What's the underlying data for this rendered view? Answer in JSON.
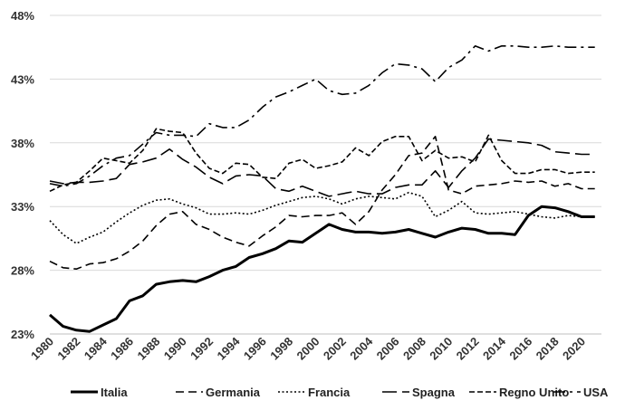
{
  "chart_data": {
    "type": "line",
    "title": "",
    "xlabel": "",
    "ylabel": "",
    "ylim": [
      23,
      48
    ],
    "yticks": [
      23,
      28,
      33,
      38,
      43,
      48
    ],
    "ytick_labels": [
      "23%",
      "28%",
      "33%",
      "38%",
      "43%",
      "48%"
    ],
    "xticks": [
      1980,
      1982,
      1984,
      1986,
      1988,
      1990,
      1992,
      1994,
      1996,
      1998,
      2000,
      2002,
      2004,
      2006,
      2008,
      2010,
      2012,
      2014,
      2016,
      2018,
      2020
    ],
    "xtick_labels": [
      "1980",
      "1982",
      "1984",
      "1986",
      "1988",
      "1990",
      "1992",
      "1994",
      "1996",
      "1998",
      "2000",
      "2002",
      "2004",
      "2006",
      "2008",
      "2010",
      "2012",
      "2014",
      "2016",
      "2018",
      "2020"
    ],
    "grid": "horizontal",
    "legend_position": "bottom",
    "x": [
      1980,
      1981,
      1982,
      1983,
      1984,
      1985,
      1986,
      1987,
      1988,
      1989,
      1990,
      1991,
      1992,
      1993,
      1994,
      1995,
      1996,
      1997,
      1998,
      1999,
      2000,
      2001,
      2002,
      2003,
      2004,
      2005,
      2006,
      2007,
      2008,
      2009,
      2010,
      2011,
      2012,
      2013,
      2014,
      2015,
      2016,
      2017,
      2018,
      2019,
      2020,
      2021
    ],
    "series": [
      {
        "name": "Italia",
        "style": "solid",
        "width": 3,
        "values": [
          24.5,
          23.6,
          23.3,
          23.2,
          23.7,
          24.2,
          25.6,
          26.0,
          26.9,
          27.1,
          27.2,
          27.1,
          27.5,
          28.0,
          28.3,
          29.0,
          29.3,
          29.7,
          30.3,
          30.2,
          30.9,
          31.6,
          31.2,
          31.0,
          31.0,
          30.9,
          31.0,
          31.2,
          30.9,
          30.6,
          31.0,
          31.3,
          31.2,
          30.9,
          30.9,
          30.8,
          32.3,
          33.0,
          32.9,
          32.6,
          32.2,
          32.2
        ]
      },
      {
        "name": "Germania",
        "style": "dashed",
        "width": 1.6,
        "values": [
          28.7,
          28.2,
          28.1,
          28.5,
          28.6,
          28.9,
          29.5,
          30.3,
          31.5,
          32.4,
          32.6,
          31.6,
          31.2,
          30.6,
          30.2,
          29.9,
          30.7,
          31.4,
          32.3,
          32.2,
          32.3,
          32.3,
          32.5,
          31.6,
          32.6,
          34.3,
          35.5,
          37.0,
          37.2,
          38.5,
          34.3,
          34.0,
          34.6,
          34.7,
          34.8,
          35.0,
          34.9,
          35.0,
          34.6,
          34.8,
          34.4,
          34.4
        ]
      },
      {
        "name": "Francia",
        "style": "dotted",
        "width": 1.6,
        "values": [
          31.9,
          30.8,
          30.1,
          30.6,
          31.0,
          31.8,
          32.5,
          33.1,
          33.5,
          33.6,
          33.2,
          32.9,
          32.4,
          32.4,
          32.5,
          32.4,
          32.7,
          33.1,
          33.4,
          33.7,
          33.8,
          33.6,
          33.2,
          33.6,
          33.8,
          33.7,
          33.6,
          34.1,
          33.8,
          32.2,
          32.7,
          33.4,
          32.5,
          32.4,
          32.5,
          32.6,
          32.4,
          32.2,
          32.1,
          32.3,
          32.2,
          32.2
        ]
      },
      {
        "name": "Spagna",
        "style": "longdash",
        "width": 1.6,
        "values": [
          35.0,
          34.8,
          34.9,
          34.9,
          35.0,
          35.2,
          36.3,
          36.5,
          36.8,
          37.5,
          36.7,
          36.1,
          35.3,
          34.8,
          35.4,
          35.5,
          35.4,
          34.4,
          34.2,
          34.6,
          34.2,
          33.8,
          34.0,
          34.2,
          34.0,
          34.0,
          34.5,
          34.7,
          34.7,
          35.8,
          34.5,
          35.8,
          36.8,
          38.3,
          38.2,
          38.1,
          38.0,
          37.8,
          37.3,
          37.2,
          37.1,
          37.1
        ]
      },
      {
        "name": "Regno Unito",
        "style": "dashed-short",
        "width": 1.6,
        "values": [
          34.2,
          34.7,
          34.9,
          35.8,
          36.8,
          36.6,
          36.4,
          37.4,
          39.1,
          38.9,
          38.8,
          37.2,
          36.0,
          35.6,
          36.4,
          36.3,
          35.3,
          35.2,
          36.4,
          36.7,
          36.0,
          36.2,
          36.5,
          37.6,
          37.0,
          38.1,
          38.5,
          38.5,
          36.6,
          37.4,
          36.8,
          36.9,
          36.5,
          38.6,
          36.6,
          35.6,
          35.6,
          35.9,
          35.9,
          35.6,
          35.7,
          35.7
        ]
      },
      {
        "name": "USA",
        "style": "dashdot",
        "width": 1.6,
        "values": [
          34.8,
          34.6,
          34.8,
          35.4,
          36.2,
          36.8,
          37.0,
          37.9,
          38.8,
          38.6,
          38.6,
          38.5,
          39.5,
          39.2,
          39.2,
          39.8,
          40.8,
          41.6,
          42.0,
          42.5,
          43.0,
          42.1,
          41.8,
          41.9,
          42.5,
          43.5,
          44.2,
          44.1,
          43.8,
          42.8,
          43.9,
          44.5,
          45.6,
          45.2,
          45.6,
          45.6,
          45.5,
          45.5,
          45.6,
          45.5,
          45.5,
          45.5
        ]
      }
    ]
  }
}
